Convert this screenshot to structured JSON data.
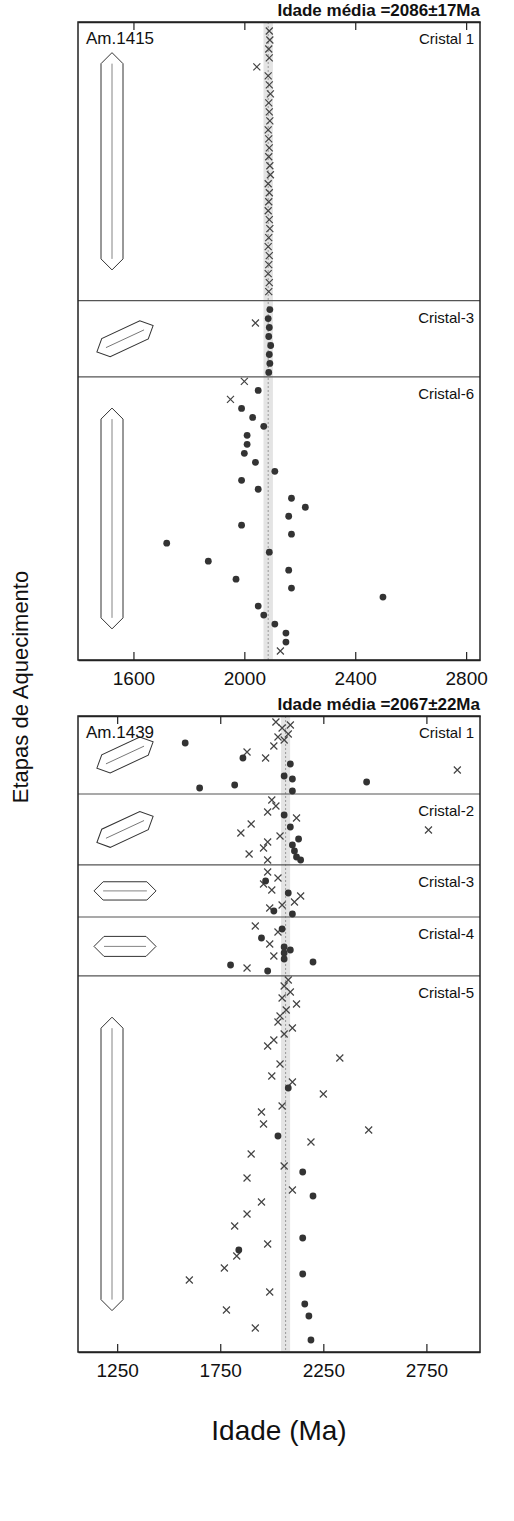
{
  "chart_data": [
    {
      "type": "scatter",
      "title": "Idade média =2086±17Ma",
      "sample": "Am.1415",
      "ylabel": "Etapas de Aquecimento",
      "mean_age": 2086,
      "mean_error": 17,
      "xlim": [
        1400,
        2850
      ],
      "xticks": [
        1600,
        2000,
        2400,
        2800
      ],
      "ylim": [
        71,
        0
      ],
      "tick_labels": "x",
      "groups": [
        {
          "label": "Cristal 1",
          "from": 0,
          "to": 31
        },
        {
          "label": "Cristal-3",
          "from": 31,
          "to": 39.5
        },
        {
          "label": "Cristal-6",
          "from": 39.5,
          "to": 71
        }
      ],
      "series": [
        {
          "marker": "x",
          "x": [
            2090,
            2092,
            2088,
            2090,
            2045,
            2086,
            2090,
            2094,
            2088,
            2090,
            2092,
            2086,
            2088,
            2090,
            2088,
            2092,
            2094,
            2086,
            2090,
            2088,
            2086,
            2090,
            2092,
            2088,
            2086,
            2090,
            2088,
            2086,
            2090,
            2088,
            2040,
            2000,
            1950,
            2130
          ],
          "y": [
            1,
            2,
            3,
            4,
            5,
            6,
            7,
            8,
            9,
            10,
            11,
            12,
            13,
            14,
            15,
            16,
            17,
            18,
            19,
            20,
            21,
            22,
            23,
            24,
            25,
            26,
            27,
            28,
            29,
            30,
            33.5,
            40,
            42,
            70
          ]
        },
        {
          "marker": "circle",
          "x": [
            2092,
            2086,
            2090,
            2088,
            2095,
            2090,
            2092,
            2088,
            2050,
            1990,
            2030,
            2070,
            2010,
            2010,
            2000,
            2040,
            2110,
            1990,
            2050,
            2170,
            2220,
            2160,
            1990,
            2170,
            1720,
            2090,
            1870,
            2160,
            1970,
            2170,
            2500,
            2050,
            2070,
            2110,
            2150,
            2150
          ],
          "y": [
            32,
            33,
            34,
            35,
            36,
            37,
            38,
            39,
            41,
            43,
            44,
            45,
            46,
            47,
            48,
            49,
            50,
            51,
            52,
            53,
            54,
            55,
            56,
            57,
            58,
            59,
            60,
            61,
            62,
            63,
            64,
            65,
            66,
            67,
            68,
            69
          ]
        }
      ]
    },
    {
      "type": "scatter",
      "title": "Idade média =2067±22Ma",
      "sample": "Am.1439",
      "xlabel": "Idade (Ma)",
      "mean_age": 2067,
      "mean_error": 22,
      "xlim": [
        1060,
        3010
      ],
      "xticks": [
        1250,
        1750,
        2250,
        2750
      ],
      "ylim": [
        106,
        0
      ],
      "tick_labels": "x",
      "groups": [
        {
          "label": "Cristal 1",
          "from": 0,
          "to": 13
        },
        {
          "label": "Cristal-2",
          "from": 13,
          "to": 24.8
        },
        {
          "label": "Cristal-3",
          "from": 24.8,
          "to": 33.5
        },
        {
          "label": "Cristal-4",
          "from": 33.5,
          "to": 43.3
        },
        {
          "label": "Cristal-5",
          "from": 43.3,
          "to": 106
        }
      ],
      "series": [
        {
          "marker": "x",
          "x": [
            2020,
            2090,
            2050,
            2080,
            2030,
            2060,
            2010,
            1880,
            1970,
            2900,
            2000,
            2020,
            1980,
            2120,
            1900,
            2760,
            1850,
            2040,
            1980,
            1960,
            1890,
            1980,
            1980,
            2030,
            1960,
            2000,
            2140,
            2110,
            2050,
            1990,
            1920,
            2030,
            1990,
            2010,
            1880,
            2080,
            2060,
            2090,
            2050,
            2120,
            2070,
            2040,
            2030,
            2100,
            2060,
            2010,
            1980,
            2330,
            2040,
            2000,
            2100,
            2250,
            2050,
            1950,
            1960,
            2470,
            2190,
            1900,
            2060,
            1880,
            2100,
            1950,
            1880,
            1820,
            1980,
            1830,
            1770,
            1600,
            1990,
            1780,
            1920
          ],
          "y": [
            1,
            1.5,
            2,
            3,
            3.5,
            4,
            5,
            6,
            7,
            9,
            14,
            15,
            16,
            17,
            18,
            19,
            19.5,
            20,
            21,
            22,
            23,
            24,
            26,
            27,
            28,
            29,
            30,
            31,
            31.5,
            32,
            35,
            36,
            38,
            40,
            42,
            44,
            45,
            46,
            47,
            48,
            49,
            50,
            51,
            52,
            53,
            54,
            55,
            57,
            58,
            60,
            61,
            63,
            65,
            66,
            68,
            69,
            71,
            73,
            75,
            77,
            79,
            81,
            83,
            85,
            88,
            90,
            92,
            94,
            96,
            99,
            102
          ]
        },
        {
          "marker": "circle",
          "x": [
            1580,
            1860,
            2090,
            2060,
            2100,
            2460,
            1820,
            1650,
            2100,
            2060,
            2090,
            2130,
            2100,
            2110,
            2120,
            2140,
            1970,
            2080,
            2010,
            2100,
            2050,
            1950,
            2060,
            2090,
            2060,
            2060,
            2200,
            1800,
            1980,
            2080,
            2030,
            2150,
            2200,
            2150,
            1840,
            2150,
            2160,
            2180,
            2190
          ],
          "y": [
            4.5,
            7,
            8,
            10,
            10.5,
            11,
            11.5,
            12,
            12.5,
            16.5,
            18.5,
            20.5,
            21.5,
            22.5,
            23.5,
            24,
            27.5,
            29.5,
            32.5,
            33,
            35.5,
            37,
            38.5,
            39,
            39.5,
            40.5,
            41,
            41.5,
            42.5,
            62,
            70,
            76,
            80,
            87,
            89,
            93,
            98,
            100,
            104
          ]
        }
      ]
    }
  ]
}
